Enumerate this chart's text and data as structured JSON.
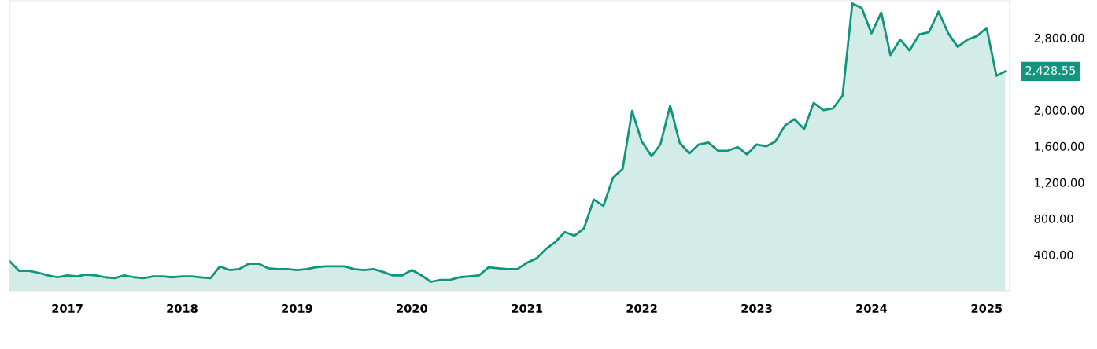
{
  "chart_data": {
    "type": "area",
    "x": [
      "2016-07",
      "2016-08",
      "2016-09",
      "2016-10",
      "2016-11",
      "2016-12",
      "2017-01",
      "2017-02",
      "2017-03",
      "2017-04",
      "2017-05",
      "2017-06",
      "2017-07",
      "2017-08",
      "2017-09",
      "2017-10",
      "2017-11",
      "2017-12",
      "2018-01",
      "2018-02",
      "2018-03",
      "2018-04",
      "2018-05",
      "2018-06",
      "2018-07",
      "2018-08",
      "2018-09",
      "2018-10",
      "2018-11",
      "2018-12",
      "2019-01",
      "2019-02",
      "2019-03",
      "2019-04",
      "2019-05",
      "2019-06",
      "2019-07",
      "2019-08",
      "2019-09",
      "2019-10",
      "2019-11",
      "2019-12",
      "2020-01",
      "2020-02",
      "2020-03",
      "2020-04",
      "2020-05",
      "2020-06",
      "2020-07",
      "2020-08",
      "2020-09",
      "2020-10",
      "2020-11",
      "2020-12",
      "2021-01",
      "2021-02",
      "2021-03",
      "2021-04",
      "2021-05",
      "2021-06",
      "2021-07",
      "2021-08",
      "2021-09",
      "2021-10",
      "2021-11",
      "2021-12",
      "2022-01",
      "2022-02",
      "2022-03",
      "2022-04",
      "2022-05",
      "2022-06",
      "2022-07",
      "2022-08",
      "2022-09",
      "2022-10",
      "2022-11",
      "2022-12",
      "2023-01",
      "2023-02",
      "2023-03",
      "2023-04",
      "2023-05",
      "2023-06",
      "2023-07",
      "2023-08",
      "2023-09",
      "2023-10",
      "2023-11",
      "2023-12",
      "2024-01",
      "2024-02",
      "2024-03",
      "2024-04",
      "2024-05",
      "2024-06",
      "2024-07",
      "2024-08",
      "2024-09",
      "2024-10",
      "2024-11",
      "2024-12",
      "2025-01",
      "2025-02",
      "2025-03"
    ],
    "series": [
      {
        "color": "#12957e",
        "values": [
          330,
          220,
          220,
          200,
          170,
          150,
          170,
          160,
          180,
          170,
          150,
          140,
          170,
          150,
          140,
          160,
          160,
          150,
          160,
          160,
          150,
          140,
          270,
          230,
          240,
          300,
          300,
          250,
          240,
          240,
          230,
          240,
          260,
          270,
          270,
          270,
          240,
          230,
          240,
          210,
          170,
          170,
          230,
          170,
          100,
          120,
          120,
          150,
          160,
          170,
          260,
          250,
          240,
          240,
          310,
          360,
          460,
          540,
          650,
          610,
          690,
          1010,
          940,
          1250,
          1350,
          1990,
          1650,
          1490,
          1620,
          2050,
          1640,
          1520,
          1620,
          1640,
          1550,
          1550,
          1590,
          1510,
          1620,
          1600,
          1650,
          1830,
          1900,
          1790,
          2080,
          2000,
          2020,
          2160,
          3180,
          3130,
          2850,
          3080,
          2610,
          2780,
          2660,
          2840,
          2860,
          3090,
          2850,
          2700,
          2780,
          2820,
          2910,
          2380,
          2428.55
        ]
      }
    ],
    "xlim": [
      "2016-07",
      "2025-03-15"
    ],
    "xticks": [
      "2017",
      "2018",
      "2019",
      "2020",
      "2021",
      "2022",
      "2023",
      "2024",
      "2025"
    ],
    "ylim": [
      0,
      3210
    ],
    "yticks": [
      {
        "value": 400,
        "label": "400.00"
      },
      {
        "value": 800,
        "label": "800.00"
      },
      {
        "value": 1200,
        "label": "1,200.00"
      },
      {
        "value": 1600,
        "label": "1,600.00"
      },
      {
        "value": 2000,
        "label": "2,000.00"
      },
      {
        "value": 2800,
        "label": "2,800.00"
      }
    ],
    "annotations": [
      "2,428.55"
    ],
    "grid": false,
    "legend": false
  }
}
